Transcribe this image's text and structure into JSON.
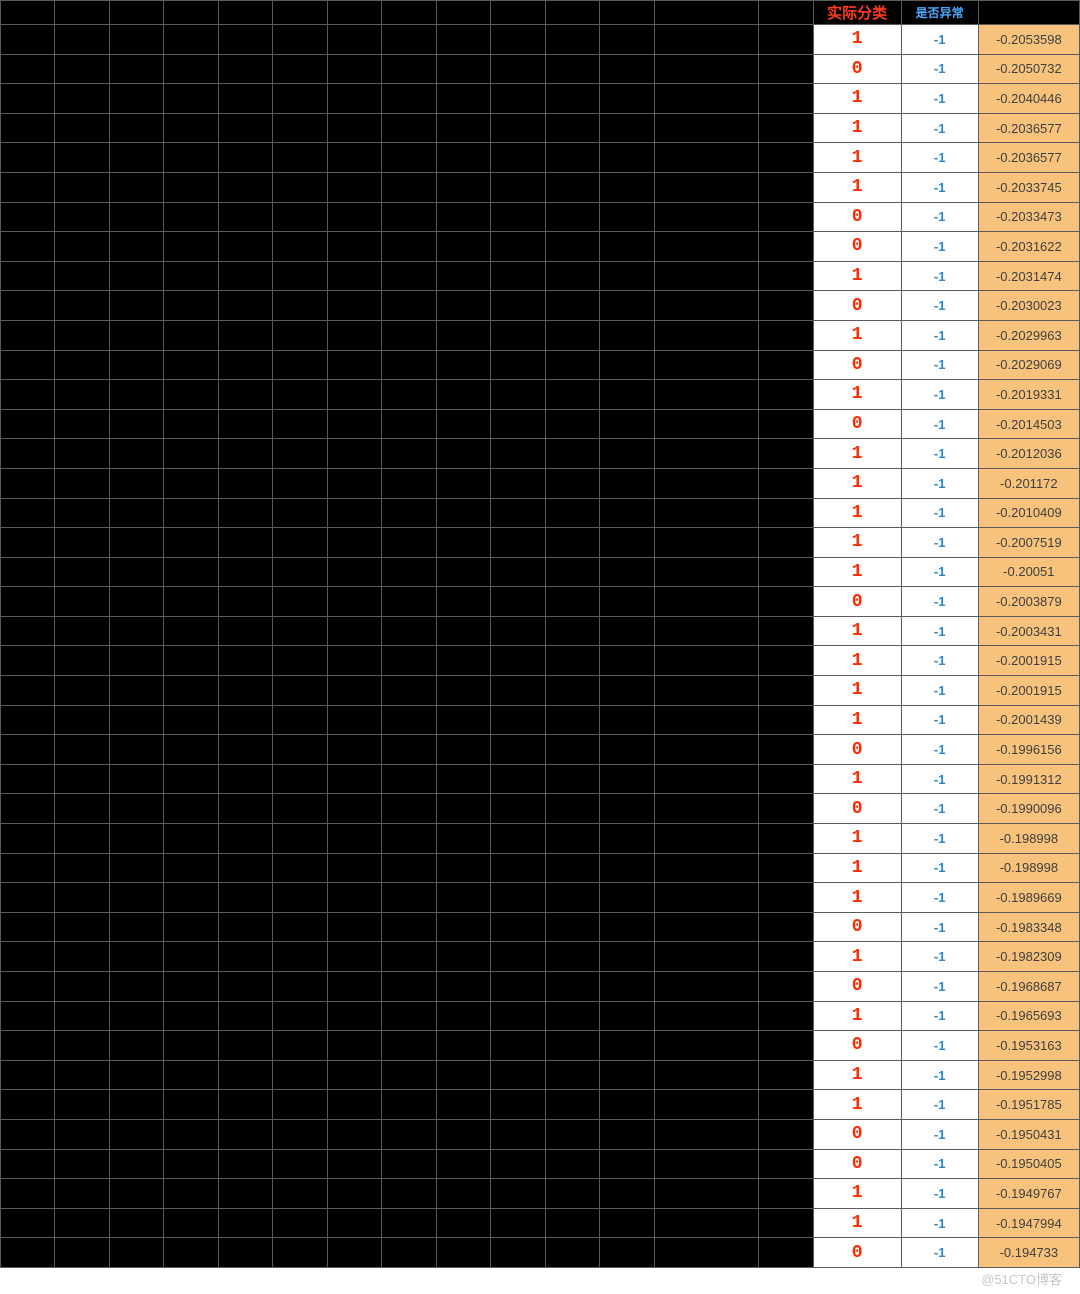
{
  "table": {
    "blackCols": 14,
    "headers": {
      "actual": "实际分类",
      "anomaly": "是否异常",
      "score": ""
    },
    "colors": {
      "black": "#000000",
      "actual_text": "#ff2a00",
      "actual_header": "#ff3b1f",
      "anomaly_text": "#2a87d0",
      "anomaly_header": "#4aa8ff",
      "score_bg": "#f7c27b",
      "score_text": "#404040",
      "border": "#5b5b5b"
    },
    "rows": [
      {
        "actual": "1",
        "anom": "-1",
        "score": "-0.2053598"
      },
      {
        "actual": "0",
        "anom": "-1",
        "score": "-0.2050732"
      },
      {
        "actual": "1",
        "anom": "-1",
        "score": "-0.2040446"
      },
      {
        "actual": "1",
        "anom": "-1",
        "score": "-0.2036577"
      },
      {
        "actual": "1",
        "anom": "-1",
        "score": "-0.2036577"
      },
      {
        "actual": "1",
        "anom": "-1",
        "score": "-0.2033745"
      },
      {
        "actual": "0",
        "anom": "-1",
        "score": "-0.2033473"
      },
      {
        "actual": "0",
        "anom": "-1",
        "score": "-0.2031622"
      },
      {
        "actual": "1",
        "anom": "-1",
        "score": "-0.2031474"
      },
      {
        "actual": "0",
        "anom": "-1",
        "score": "-0.2030023"
      },
      {
        "actual": "1",
        "anom": "-1",
        "score": "-0.2029963"
      },
      {
        "actual": "0",
        "anom": "-1",
        "score": "-0.2029069"
      },
      {
        "actual": "1",
        "anom": "-1",
        "score": "-0.2019331"
      },
      {
        "actual": "0",
        "anom": "-1",
        "score": "-0.2014503"
      },
      {
        "actual": "1",
        "anom": "-1",
        "score": "-0.2012036"
      },
      {
        "actual": "1",
        "anom": "-1",
        "score": "-0.201172"
      },
      {
        "actual": "1",
        "anom": "-1",
        "score": "-0.2010409"
      },
      {
        "actual": "1",
        "anom": "-1",
        "score": "-0.2007519"
      },
      {
        "actual": "1",
        "anom": "-1",
        "score": "-0.20051"
      },
      {
        "actual": "0",
        "anom": "-1",
        "score": "-0.2003879"
      },
      {
        "actual": "1",
        "anom": "-1",
        "score": "-0.2003431"
      },
      {
        "actual": "1",
        "anom": "-1",
        "score": "-0.2001915"
      },
      {
        "actual": "1",
        "anom": "-1",
        "score": "-0.2001915"
      },
      {
        "actual": "1",
        "anom": "-1",
        "score": "-0.2001439"
      },
      {
        "actual": "0",
        "anom": "-1",
        "score": "-0.1996156"
      },
      {
        "actual": "1",
        "anom": "-1",
        "score": "-0.1991312"
      },
      {
        "actual": "0",
        "anom": "-1",
        "score": "-0.1990096"
      },
      {
        "actual": "1",
        "anom": "-1",
        "score": "-0.198998"
      },
      {
        "actual": "1",
        "anom": "-1",
        "score": "-0.198998"
      },
      {
        "actual": "1",
        "anom": "-1",
        "score": "-0.1989669"
      },
      {
        "actual": "0",
        "anom": "-1",
        "score": "-0.1983348"
      },
      {
        "actual": "1",
        "anom": "-1",
        "score": "-0.1982309"
      },
      {
        "actual": "0",
        "anom": "-1",
        "score": "-0.1968687"
      },
      {
        "actual": "1",
        "anom": "-1",
        "score": "-0.1965693"
      },
      {
        "actual": "0",
        "anom": "-1",
        "score": "-0.1953163"
      },
      {
        "actual": "1",
        "anom": "-1",
        "score": "-0.1952998"
      },
      {
        "actual": "1",
        "anom": "-1",
        "score": "-0.1951785"
      },
      {
        "actual": "0",
        "anom": "-1",
        "score": "-0.1950431"
      },
      {
        "actual": "0",
        "anom": "-1",
        "score": "-0.1950405"
      },
      {
        "actual": "1",
        "anom": "-1",
        "score": "-0.1949767"
      },
      {
        "actual": "1",
        "anom": "-1",
        "score": "-0.1947994"
      },
      {
        "actual": "0",
        "anom": "-1",
        "score": "-0.194733"
      }
    ]
  },
  "watermark": "@51CTO博客"
}
